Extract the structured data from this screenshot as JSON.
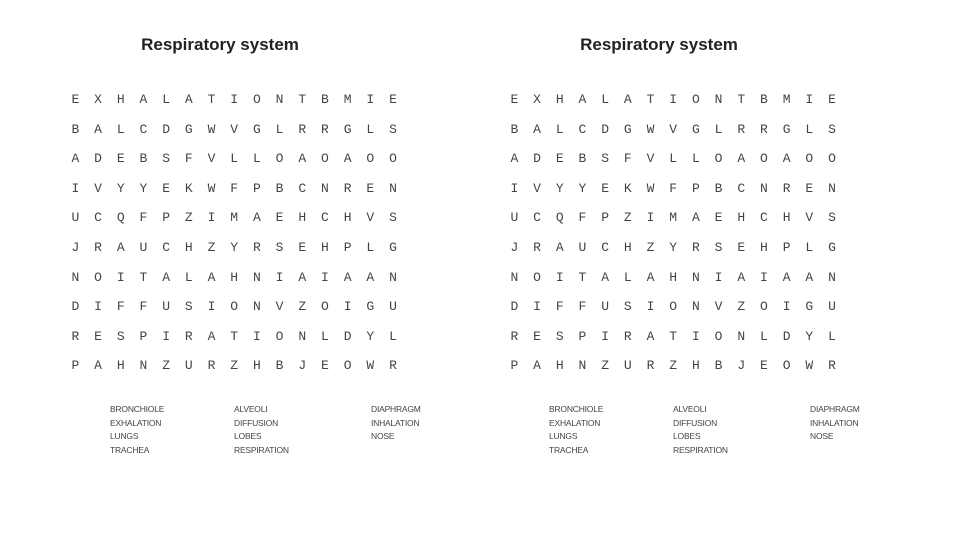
{
  "worksheets": [
    {
      "title": "Respiratory system",
      "grid": [
        "EXHALATIONTBMIE",
        "BALCDGWVGLRRGLS",
        "ADEBSFVLLOAOAOO",
        "IVYYEKWFPBCNREN",
        "UCQFPZIMAEHCHVS",
        "JRAUCHZYRSEHPLG",
        "NOITALAHNIAIAAN",
        "DIFFUSIONVZOIGU",
        "RESPIRATIONLDYL",
        "PAHNZURZHBJEOWR"
      ],
      "word_columns": [
        [
          "BRONCHIOLE",
          "EXHALATION",
          "LUNGS",
          "TRACHEA"
        ],
        [
          "ALVEOLI",
          "DIFFUSION",
          "LOBES",
          "RESPIRATION"
        ],
        [
          "DIAPHRAGM",
          "INHALATION",
          "NOSE"
        ]
      ]
    },
    {
      "title": "Respiratory system",
      "grid": [
        "EXHALATIONTBMIE",
        "BALCDGWVGLRRGLS",
        "ADEBSFVLLOAOAOO",
        "IVYYEKWFPBCNREN",
        "UCQFPZIMAEHCHVS",
        "JRAUCHZYRSEHPLG",
        "NOITALAHNIAIAAN",
        "DIFFUSIONVZOIGU",
        "RESPIRATIONLDYL",
        "PAHNZURZHBJEOWR"
      ],
      "word_columns": [
        [
          "BRONCHIOLE",
          "EXHALATION",
          "LUNGS",
          "TRACHEA"
        ],
        [
          "ALVEOLI",
          "DIFFUSION",
          "LOBES",
          "RESPIRATION"
        ],
        [
          "DIAPHRAGM",
          "INHALATION",
          "NOSE"
        ]
      ]
    }
  ]
}
